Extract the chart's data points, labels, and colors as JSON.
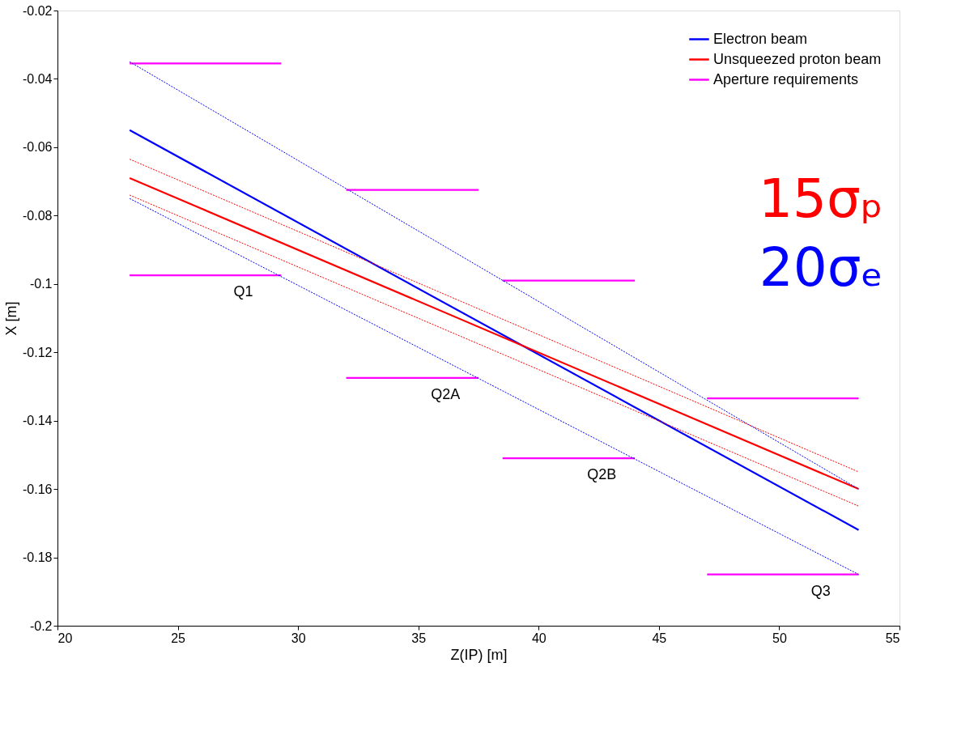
{
  "chart_data": {
    "type": "line",
    "xlabel": "Z(IP) [m]",
    "ylabel": "X [m]",
    "xlim": [
      20,
      55
    ],
    "xticks": [
      20,
      25,
      30,
      35,
      40,
      45,
      50,
      55
    ],
    "ylim": [
      -0.2,
      -0.02
    ],
    "yticks": [
      -0.2,
      -0.18,
      -0.16,
      -0.14,
      -0.12,
      -0.1,
      -0.08,
      -0.06,
      -0.04,
      -0.02
    ],
    "grid": false,
    "legend": "top right",
    "marker": "none",
    "series": [
      {
        "name": "Electron beam",
        "color": "#0000ff",
        "x": [
          23,
          53.3
        ],
        "values": [
          -0.055,
          -0.172
        ]
      },
      {
        "name": "Unsqueezed proton beam",
        "color": "#ff0000",
        "x": [
          23,
          53.3
        ],
        "values": [
          -0.069,
          -0.16
        ]
      },
      {
        "name": "Aperture requirements",
        "color": "#ff00ff",
        "x": [
          23,
          29.3
        ],
        "values": [
          -0.0355,
          -0.0355
        ]
      },
      {
        "color": "#ff00ff",
        "x": [
          23,
          29.3
        ],
        "values": [
          -0.0975,
          -0.0975
        ]
      },
      {
        "color": "#ff00ff",
        "x": [
          32,
          37.5
        ],
        "values": [
          -0.0725,
          -0.0725
        ]
      },
      {
        "color": "#ff00ff",
        "x": [
          32,
          37.5
        ],
        "values": [
          -0.1275,
          -0.1275
        ]
      },
      {
        "color": "#ff00ff",
        "x": [
          38.5,
          44
        ],
        "values": [
          -0.099,
          -0.099
        ]
      },
      {
        "color": "#ff00ff",
        "x": [
          38.5,
          44
        ],
        "values": [
          -0.151,
          -0.151
        ]
      },
      {
        "color": "#ff00ff",
        "x": [
          47,
          53.3
        ],
        "values": [
          -0.1335,
          -0.1335
        ]
      },
      {
        "color": "#ff00ff",
        "x": [
          47,
          53.3
        ],
        "values": [
          -0.185,
          -0.185
        ]
      },
      {
        "color": "#0000ff",
        "line_style": "dotted",
        "x": [
          23,
          53.3
        ],
        "values": [
          -0.035,
          -0.16
        ]
      },
      {
        "color": "#0000ff",
        "line_style": "dotted",
        "x": [
          23,
          53.3
        ],
        "values": [
          -0.075,
          -0.185
        ]
      },
      {
        "color": "#ff0000",
        "line_style": "dotted",
        "x": [
          23,
          53.3
        ],
        "values": [
          -0.0635,
          -0.155
        ]
      },
      {
        "color": "#ff0000",
        "line_style": "dotted",
        "x": [
          23,
          53.3
        ],
        "values": [
          -0.074,
          -0.165
        ]
      }
    ],
    "annotations": [
      "Q1",
      "Q2A",
      "Q2B",
      "Q3",
      "15σₚ",
      "20σₑ"
    ]
  }
}
